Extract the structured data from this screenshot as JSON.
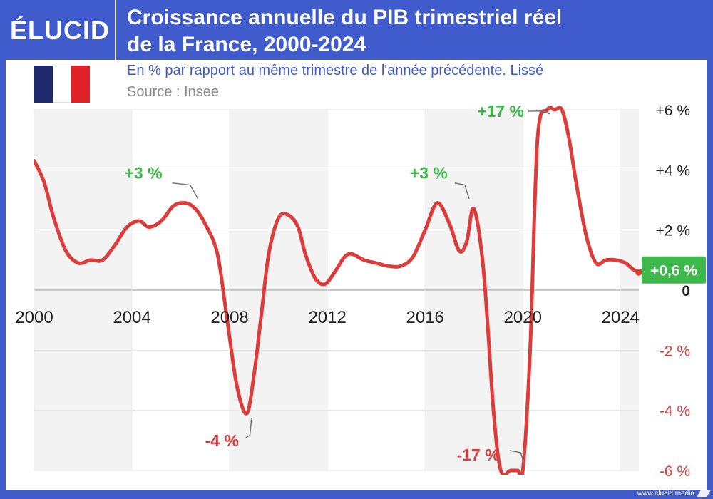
{
  "header": {
    "logo": "ÉLUCID",
    "title_line1": "Croissance annuelle du PIB trimestriel réel",
    "title_line2": "de la France, 2000-2024"
  },
  "subtitle": "En % par rapport au même trimestre de l'année précédente. Lissé",
  "source": "Source : Insee",
  "footer": "www.elucid.media",
  "colors": {
    "line": "#de3b3b",
    "positive": "#3db84a",
    "negative": "#de3b3b",
    "brand": "#3f5bcc",
    "flag_blue": "#1f2a6e",
    "flag_white": "#ffffff",
    "flag_red": "#e02127"
  },
  "chart_data": {
    "type": "line",
    "title": "Croissance annuelle du PIB trimestriel réel de la France, 2000-2024",
    "subtitle": "En % par rapport au même trimestre de l'année précédente. Lissé",
    "xlim": [
      2000,
      2024.75
    ],
    "ylim": [
      -6,
      6
    ],
    "x_ticks": [
      2000,
      2004,
      2008,
      2012,
      2016,
      2020,
      2024
    ],
    "x_tick_labels": [
      "2000",
      "2004",
      "2008",
      "2012",
      "2016",
      "2020",
      "2024"
    ],
    "y_ticks": [
      6,
      4,
      2,
      0,
      -2,
      -4,
      -6
    ],
    "y_tick_labels": [
      "+6 %",
      "+4 %",
      "+2 %",
      "0",
      "-2 %",
      "-4 %",
      "-6 %"
    ],
    "shaded_bands": [
      [
        2000,
        2004
      ],
      [
        2008,
        2012
      ],
      [
        2016,
        2020
      ],
      [
        2024,
        2024.75
      ]
    ],
    "grid": true,
    "series": [
      {
        "x": [
          2000,
          2000.4,
          2000.8,
          2001.3,
          2001.8,
          2002.3,
          2002.8,
          2003.3,
          2003.8,
          2004.3,
          2004.7,
          2005.2,
          2005.7,
          2006.2,
          2006.6,
          2007.0,
          2007.5,
          2007.9,
          2008.3,
          2008.7,
          2009.0,
          2009.3,
          2009.6,
          2010.0,
          2010.4,
          2010.8,
          2011.1,
          2011.5,
          2011.9,
          2012.3,
          2012.7,
          2013.0,
          2013.5,
          2014.0,
          2014.5,
          2015.0,
          2015.5,
          2016.0,
          2016.5,
          2017.0,
          2017.4,
          2017.7,
          2018.0,
          2018.4,
          2018.8,
          2019.1,
          2019.5,
          2019.8,
          2020.0,
          2020.3,
          2020.6,
          2021.0,
          2021.3,
          2021.6,
          2021.9,
          2022.2,
          2022.6,
          2023.0,
          2023.4,
          2023.8,
          2024.2,
          2024.5,
          2024.75
        ],
        "y": [
          4.3,
          3.6,
          2.4,
          1.3,
          0.9,
          1.0,
          1.0,
          1.5,
          2.1,
          2.3,
          2.1,
          2.3,
          2.8,
          2.9,
          2.7,
          2.2,
          1.2,
          -1.0,
          -3.2,
          -4.1,
          -2.8,
          -0.8,
          1.2,
          2.4,
          2.5,
          2.1,
          1.2,
          0.4,
          0.2,
          0.6,
          1.1,
          1.2,
          1.0,
          0.9,
          0.8,
          0.8,
          1.1,
          2.0,
          2.9,
          2.2,
          1.3,
          1.6,
          2.7,
          0.6,
          -4.0,
          -6.0,
          -6.0,
          -6.0,
          -6.0,
          -2.0,
          5.0,
          6.0,
          6.0,
          6.0,
          5.0,
          3.5,
          1.8,
          0.9,
          1.0,
          1.0,
          0.9,
          0.7,
          0.6
        ]
      }
    ],
    "annotations": [
      {
        "x": 2006.7,
        "y": 2.9,
        "text": "+3 %",
        "sign": "positive"
      },
      {
        "x": 2017.8,
        "y": 2.9,
        "text": "+3 %",
        "sign": "positive"
      },
      {
        "x": 2021.1,
        "y": 6.0,
        "text": "+17 %",
        "sign": "positive"
      },
      {
        "x": 2008.9,
        "y": -4.1,
        "text": "-4 %",
        "sign": "negative"
      },
      {
        "x": 2020.1,
        "y": -6.0,
        "text": "-17 %",
        "sign": "negative"
      },
      {
        "x": 2024.75,
        "y": 0.6,
        "text": "+0,6 %",
        "sign": "last"
      }
    ]
  }
}
